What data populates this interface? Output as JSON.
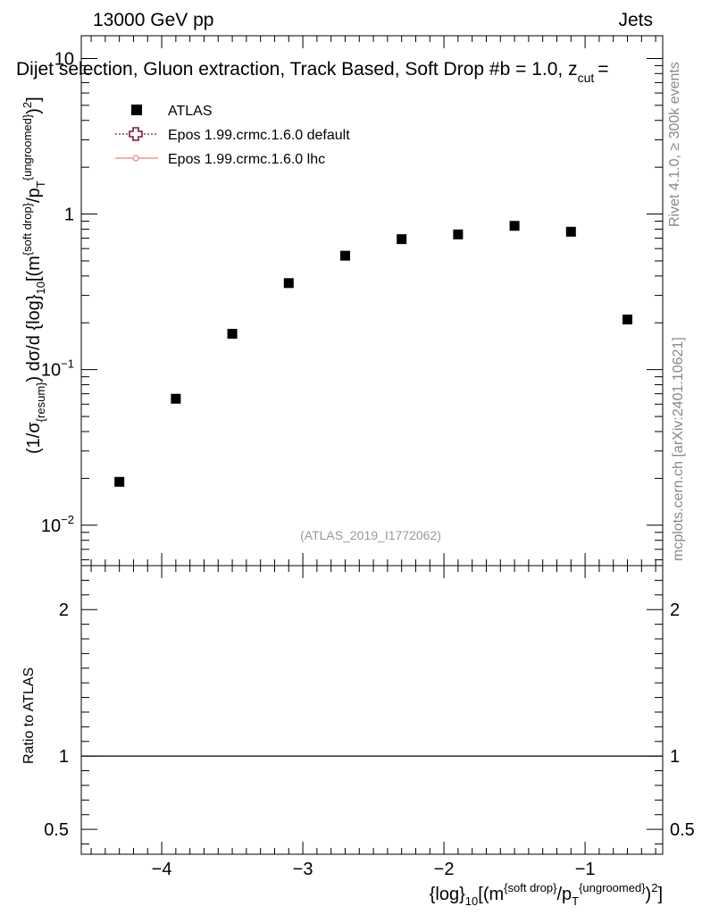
{
  "header": {
    "energy_label": "13000 GeV pp",
    "process_label": "Jets",
    "selection_title": "Dijet selection, Gluon extraction, Track Based, Soft Drop #b = 1.0, z",
    "zcut_sub": "cut",
    "zcut_eq": "="
  },
  "side_labels": {
    "rivet": "Rivet 4.1.0, ≥ 300k events",
    "mcplots": "mcplots.cern.ch [arXiv:2401.10621]"
  },
  "watermark": "(ATLAS_2019_I1772062)",
  "main_ylabel": {
    "prefix": "(1/σ",
    "sub1": "{resum}",
    "mid": ") dσ/d {log}",
    "sub2": "10",
    "mid2": "[(m",
    "sup1": "{soft drop}",
    "mid3": "/p",
    "sub3": "T",
    "sup2": "{ungroomed}",
    "suffix": ")",
    "sup3": "2",
    "end": "]"
  },
  "ratio_ylabel": "Ratio to ATLAS",
  "xlabel": {
    "prefix": "{log}",
    "sub1": "10",
    "mid": "[(m",
    "sup1": "{soft drop}",
    "mid2": "/p",
    "sub2": "T",
    "sup2": "{ungroomed}",
    "suffix": ")",
    "sup3": "2",
    "end": "]"
  },
  "legend": [
    {
      "name": "ATLAS",
      "marker": "square",
      "color": "#000000"
    },
    {
      "name": "Epos 1.99.crmc.1.6.0 default",
      "marker": "open-cross",
      "color": "#7a1a3a"
    },
    {
      "name": "Epos 1.99.crmc.1.6.0 lhc",
      "marker": "line-circle",
      "color": "#f08080"
    }
  ],
  "chart_data": {
    "type": "scatter",
    "title": "Dijet selection, Gluon extraction, Track Based, Soft Drop #b = 1.0, z_cut =",
    "xlabel": "{log}_10[(m^{soft drop}/p_T^{ungroomed})^2]",
    "ylabel": "(1/σ_{resum}) dσ/d {log}_10[(m^{soft drop}/p_T^{ungroomed})^2]",
    "xlim": [
      -4.57,
      -0.45
    ],
    "ylim": [
      0.0055,
      14
    ],
    "yscale": "log",
    "x_ticks": [
      -4,
      -3,
      -2,
      -1
    ],
    "x_tick_labels": [
      "−4",
      "−3",
      "−2",
      "−1"
    ],
    "y_ticks": [
      {
        "value": 10,
        "mantissa": "10",
        "exp": ""
      },
      {
        "value": 1,
        "mantissa": "1",
        "exp": ""
      },
      {
        "value": 0.1,
        "mantissa": "10",
        "exp": "−1"
      },
      {
        "value": 0.01,
        "mantissa": "10",
        "exp": "−2"
      }
    ],
    "series": [
      {
        "name": "ATLAS",
        "x": [
          -4.3,
          -3.9,
          -3.5,
          -3.1,
          -2.7,
          -2.3,
          -1.9,
          -1.5,
          -1.1,
          -0.7
        ],
        "values": [
          0.019,
          0.065,
          0.17,
          0.36,
          0.54,
          0.69,
          0.74,
          0.84,
          0.77,
          0.21
        ]
      }
    ],
    "ratio_panel": {
      "ylabel": "Ratio to ATLAS",
      "ylim": [
        0.33,
        2.3
      ],
      "y_ticks": [
        0.5,
        1,
        2
      ],
      "y_tick_labels": [
        "0.5",
        "1",
        "2"
      ],
      "reference_line": 1
    }
  }
}
